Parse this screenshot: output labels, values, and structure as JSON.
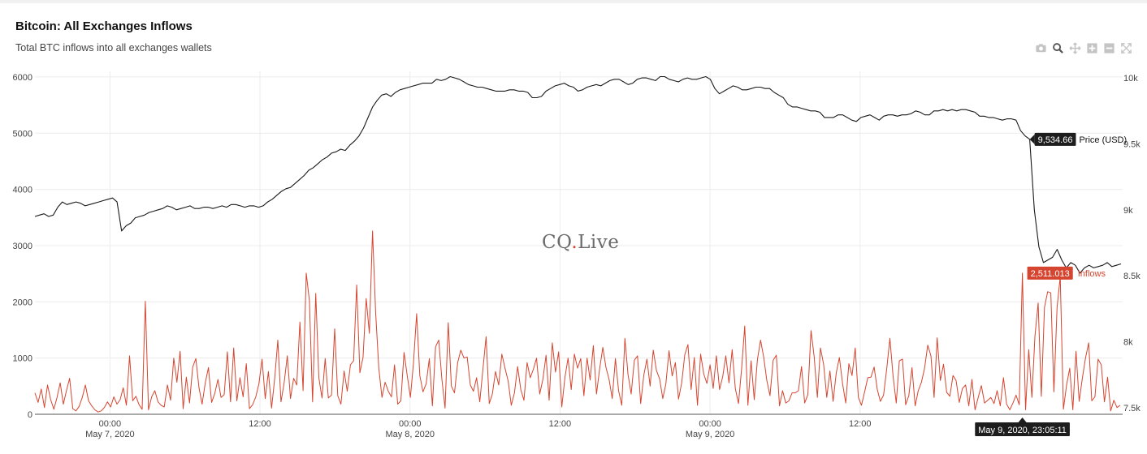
{
  "title": "Bitcoin: All Exchanges Inflows",
  "subtitle": "Total BTC inflows into all exchanges wallets",
  "watermark": {
    "main": "CQ",
    "dot": ".",
    "rest": "Live"
  },
  "modebar": [
    "camera-icon",
    "zoom-icon",
    "pan-icon",
    "zoom-in-icon",
    "zoom-out-icon",
    "autoscale-icon"
  ],
  "colors": {
    "inflow": "#d6452f",
    "price": "#1a1a1a",
    "grid": "#ececec",
    "label_bg": "#1d1d1d"
  },
  "hover": {
    "price_value": "9,534.66",
    "price_name": "Price (USD)",
    "inflow_value": "2,511.013",
    "inflow_name": "Inflows",
    "time": "May 9, 2020, 23:05:11"
  },
  "chart_data": {
    "type": "line",
    "x_range": [
      "2020-05-06 18:00",
      "2020-05-10 09:00"
    ],
    "x_ticks": [
      {
        "label": "00:00",
        "sublabel": "May 7, 2020"
      },
      {
        "label": "12:00",
        "sublabel": ""
      },
      {
        "label": "00:00",
        "sublabel": "May 8, 2020"
      },
      {
        "label": "12:00",
        "sublabel": ""
      },
      {
        "label": "00:00",
        "sublabel": "May 9, 2020"
      },
      {
        "label": "12:00",
        "sublabel": ""
      }
    ],
    "y_left": {
      "ticks": [
        "0",
        "1000",
        "2000",
        "3000",
        "4000",
        "5000",
        "6000"
      ],
      "range": [
        0,
        6100
      ]
    },
    "y_right": {
      "ticks": [
        "7.5k",
        "8k",
        "8.5k",
        "9k",
        "9.5k",
        "10k"
      ],
      "range": [
        7450,
        10050
      ]
    },
    "series": [
      {
        "name": "Inflows",
        "axis": "left",
        "values": [
          380,
          210,
          450,
          120,
          520,
          260,
          90,
          300,
          560,
          180,
          420,
          640,
          100,
          60,
          140,
          300,
          520,
          240,
          150,
          80,
          40,
          60,
          120,
          220,
          130,
          310,
          180,
          260,
          470,
          160,
          1040,
          240,
          320,
          170,
          90,
          2010,
          80,
          310,
          420,
          220,
          160,
          130,
          520,
          250,
          1000,
          570,
          1120,
          100,
          660,
          200,
          840,
          990,
          470,
          180,
          560,
          830,
          210,
          370,
          620,
          300,
          350,
          1110,
          220,
          1180,
          240,
          650,
          310,
          900,
          100,
          170,
          310,
          540,
          980,
          280,
          760,
          110,
          640,
          1320,
          220,
          560,
          1040,
          280,
          640,
          520,
          1640,
          420,
          2510,
          2020,
          220,
          2150,
          650,
          290,
          990,
          290,
          340,
          1520,
          330,
          180,
          770,
          410,
          880,
          950,
          2300,
          740,
          1010,
          2060,
          1440,
          3260,
          1820,
          820,
          300,
          570,
          410,
          310,
          880,
          180,
          240,
          1100,
          690,
          300,
          910,
          1790,
          690,
          400,
          540,
          990,
          150,
          1200,
          1320,
          620,
          110,
          1630,
          500,
          380,
          920,
          1140,
          1000,
          1020,
          520,
          410,
          650,
          220,
          800,
          1380,
          190,
          360,
          760,
          520,
          1070,
          820,
          590,
          160,
          380,
          850,
          440,
          250,
          920,
          650,
          800,
          1000,
          360,
          620,
          1050,
          250,
          1270,
          750,
          1110,
          130,
          660,
          1000,
          440,
          1070,
          820,
          990,
          330,
          1000,
          610,
          1220,
          360,
          810,
          1190,
          830,
          620,
          280,
          990,
          420,
          160,
          1350,
          710,
          360,
          960,
          1040,
          190,
          700,
          980,
          500,
          1140,
          780,
          630,
          280,
          540,
          1130,
          680,
          920,
          270,
          560,
          1060,
          1240,
          440,
          1010,
          160,
          1070,
          720,
          550,
          880,
          460,
          1040,
          440,
          670,
          1040,
          560,
          1150,
          460,
          190,
          820,
          1570,
          160,
          950,
          260,
          970,
          1320,
          1020,
          600,
          330,
          960,
          1050,
          150,
          420,
          200,
          240,
          380,
          380,
          420,
          850,
          200,
          350,
          1490,
          1020,
          300,
          1180,
          890,
          300,
          770,
          230,
          740,
          1010,
          550,
          200,
          900,
          690,
          1180,
          300,
          160,
          400,
          650,
          660,
          840,
          440,
          230,
          340,
          810,
          1350,
          680,
          200,
          950,
          980,
          170,
          330,
          830,
          150,
          420,
          570,
          820,
          1230,
          1040,
          300,
          1360,
          600,
          890,
          390,
          320,
          690,
          600,
          210,
          460,
          520,
          150,
          620,
          80,
          300,
          510,
          200,
          250,
          300,
          190,
          420,
          150,
          650,
          180,
          80,
          200,
          340,
          170,
          2511,
          80,
          1150,
          300,
          1400,
          1980,
          320,
          1900,
          2180,
          2160,
          400,
          1900,
          2450,
          90,
          520,
          820,
          80,
          1120,
          230,
          640,
          1000,
          1270,
          240,
          310,
          980,
          880,
          220,
          660,
          60,
          250,
          120,
          160
        ]
      },
      {
        "name": "Price (USD)",
        "axis": "right",
        "values": [
          8950,
          8960,
          8970,
          8950,
          8960,
          9020,
          9060,
          9040,
          9050,
          9060,
          9050,
          9030,
          9040,
          9050,
          9060,
          9070,
          9080,
          9090,
          9060,
          8840,
          8880,
          8900,
          8940,
          8950,
          8960,
          8980,
          8990,
          9000,
          9010,
          9030,
          9020,
          9000,
          9010,
          9020,
          9030,
          9010,
          9010,
          9020,
          9020,
          9010,
          9020,
          9030,
          9020,
          9040,
          9040,
          9030,
          9020,
          9030,
          9030,
          9020,
          9030,
          9060,
          9080,
          9110,
          9140,
          9160,
          9170,
          9200,
          9230,
          9260,
          9300,
          9320,
          9350,
          9380,
          9400,
          9430,
          9440,
          9460,
          9450,
          9490,
          9520,
          9560,
          9620,
          9700,
          9780,
          9830,
          9870,
          9880,
          9860,
          9890,
          9910,
          9920,
          9930,
          9940,
          9950,
          9960,
          9960,
          9960,
          9990,
          9980,
          9990,
          10010,
          10000,
          9990,
          9970,
          9950,
          9940,
          9930,
          9930,
          9920,
          9910,
          9900,
          9900,
          9900,
          9910,
          9910,
          9900,
          9900,
          9890,
          9850,
          9850,
          9860,
          9900,
          9920,
          9940,
          9950,
          9960,
          9940,
          9930,
          9900,
          9910,
          9930,
          9940,
          9950,
          9940,
          9960,
          9980,
          9990,
          9990,
          9970,
          9950,
          9960,
          9990,
          10000,
          10000,
          9990,
          9980,
          10010,
          10010,
          9990,
          9980,
          9970,
          9990,
          10000,
          9990,
          9990,
          10000,
          10010,
          9990,
          9920,
          9880,
          9900,
          9920,
          9940,
          9930,
          9910,
          9910,
          9920,
          9930,
          9930,
          9920,
          9920,
          9890,
          9870,
          9850,
          9800,
          9780,
          9780,
          9770,
          9760,
          9750,
          9750,
          9740,
          9700,
          9700,
          9700,
          9720,
          9720,
          9700,
          9680,
          9670,
          9700,
          9710,
          9720,
          9700,
          9680,
          9710,
          9720,
          9720,
          9710,
          9720,
          9720,
          9730,
          9750,
          9740,
          9720,
          9720,
          9750,
          9750,
          9760,
          9750,
          9760,
          9750,
          9760,
          9760,
          9750,
          9740,
          9710,
          9710,
          9700,
          9700,
          9690,
          9680,
          9690,
          9690,
          9680,
          9600,
          9560,
          9534.66,
          9000,
          8720,
          8600,
          8620,
          8640,
          8700,
          8620,
          8560,
          8600,
          8580,
          8520,
          8560,
          8580,
          8560,
          8570,
          8580,
          8600,
          8570,
          8580,
          8590
        ]
      }
    ]
  }
}
